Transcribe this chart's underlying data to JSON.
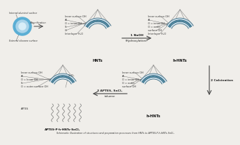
{
  "bg_color": "#f0eeea",
  "title_text": "Schematic illustration of structures and preparation processes from HNTs to APTES-P-h-HNTs-SnCl₂",
  "hnts_label": "HNTs",
  "h_hnts_label": "h-HNTs",
  "p_h_hnts_label": "APTES-P-h-HNTs-SnCl₂",
  "b_h_hnts_label": "h-HNTs",
  "step1_line1": "1 NaOH",
  "step1_line2": "(Hydroxylation)",
  "step2_label": "2 Calcination",
  "step3_line1": "3 APTES, SnCl₂",
  "step3_line2": "toluene",
  "magnification_label": "Magnification",
  "internal_label": "Internal aluminol surface",
  "external_label": "External siloxane surface",
  "arc_light_color": "#c5dce8",
  "arc_dark_color": "#3d7a96",
  "arc_hatch_color": "#85b5c8",
  "arc_outline_color": "#2a5a72",
  "cone_color": "#888888",
  "arrow_color": "#444444",
  "text_color": "#222222",
  "label_color": "#333333",
  "circle_outer": "#5aaed4",
  "circle_mid": "#aad4ea",
  "circle_inner": "#d8eef8",
  "line_color": "#666666"
}
